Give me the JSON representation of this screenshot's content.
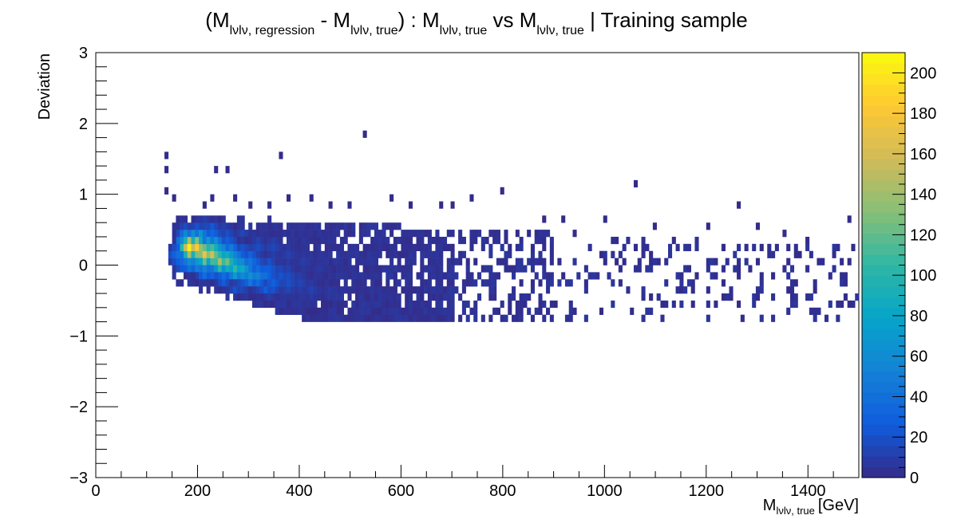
{
  "chart_data": {
    "type": "heatmap",
    "title_parts": {
      "t1": "(M",
      "s1": "lνlν, regression",
      "t2": " - M",
      "s2": "lνlν, true",
      "t3": ") : M",
      "s3": "lνlν, true",
      "t4": " vs M",
      "s4": "lνlν, true",
      "t5": " | Training sample"
    },
    "xlabel_main": "M",
    "xlabel_sub": "lνlν, true",
    "xlabel_unit": "[GeV]",
    "ylabel": "Deviation",
    "xlim": [
      0,
      1500
    ],
    "ylim": [
      -3,
      3
    ],
    "x_ticks": [
      "0",
      "200",
      "400",
      "600",
      "800",
      "1000",
      "1200",
      "1400"
    ],
    "x_tick_values": [
      0,
      200,
      400,
      600,
      800,
      1000,
      1200,
      1400
    ],
    "y_ticks": [
      "−3",
      "−2",
      "−1",
      "0",
      "1",
      "2",
      "3"
    ],
    "y_tick_values": [
      -3,
      -2,
      -1,
      0,
      1,
      2,
      3
    ],
    "z_ticks": [
      "0",
      "20",
      "40",
      "60",
      "80",
      "100",
      "120",
      "140",
      "160",
      "180",
      "200"
    ],
    "z_tick_values": [
      0,
      20,
      40,
      60,
      80,
      100,
      120,
      140,
      160,
      180,
      200
    ],
    "zlim": [
      0,
      210
    ],
    "bin_width_x": 7.5,
    "bin_height_y": 0.1,
    "colormap": [
      "#352a87",
      "#0f5cdd",
      "#1481d6",
      "#06a4ca",
      "#2eb7a4",
      "#87bf77",
      "#d1bb59",
      "#fec832",
      "#f9fb0e"
    ],
    "cells": [
      [
        180,
        0.25,
        205
      ],
      [
        195,
        0.2,
        185
      ],
      [
        210,
        0.15,
        175
      ],
      [
        225,
        0.1,
        160
      ],
      [
        240,
        0.05,
        145
      ],
      [
        255,
        0.0,
        125
      ],
      [
        270,
        -0.05,
        105
      ],
      [
        285,
        -0.08,
        85
      ],
      [
        300,
        -0.12,
        65
      ],
      [
        315,
        -0.15,
        55
      ],
      [
        330,
        -0.2,
        40
      ],
      [
        350,
        -0.25,
        30
      ],
      [
        380,
        -0.3,
        20
      ],
      [
        420,
        -0.35,
        12
      ],
      [
        460,
        -0.4,
        8
      ],
      [
        175,
        0.35,
        80
      ],
      [
        190,
        0.35,
        90
      ],
      [
        205,
        0.3,
        95
      ],
      [
        220,
        0.25,
        100
      ],
      [
        235,
        0.2,
        90
      ],
      [
        250,
        0.15,
        80
      ],
      [
        265,
        0.1,
        70
      ],
      [
        280,
        0.05,
        60
      ],
      [
        300,
        0.0,
        45
      ],
      [
        320,
        -0.05,
        35
      ],
      [
        340,
        -0.1,
        28
      ],
      [
        360,
        -0.15,
        22
      ],
      [
        380,
        -0.2,
        18
      ],
      [
        400,
        -0.25,
        14
      ],
      [
        185,
        0.05,
        60
      ],
      [
        200,
        0.0,
        70
      ],
      [
        215,
        -0.05,
        55
      ],
      [
        230,
        -0.1,
        45
      ],
      [
        250,
        -0.15,
        38
      ],
      [
        270,
        -0.2,
        30
      ],
      [
        290,
        -0.25,
        22
      ],
      [
        315,
        -0.3,
        18
      ],
      [
        340,
        -0.35,
        14
      ],
      [
        370,
        -0.4,
        10
      ],
      [
        200,
        0.45,
        30
      ],
      [
        230,
        0.4,
        35
      ],
      [
        260,
        0.35,
        28
      ],
      [
        290,
        0.3,
        22
      ],
      [
        320,
        0.25,
        18
      ],
      [
        350,
        0.2,
        15
      ],
      [
        380,
        0.1,
        12
      ],
      [
        410,
        0.0,
        10
      ],
      [
        440,
        -0.1,
        8
      ],
      [
        480,
        -0.2,
        6
      ],
      [
        160,
        0.15,
        40
      ],
      [
        170,
        0.05,
        35
      ],
      [
        175,
        0.45,
        25
      ],
      [
        215,
        0.55,
        15
      ],
      [
        250,
        0.5,
        12
      ]
    ],
    "outliers": [
      [
        135,
        1.5
      ],
      [
        135,
        1.3
      ],
      [
        140,
        1.0
      ],
      [
        235,
        1.3
      ],
      [
        262,
        1.3
      ],
      [
        360,
        1.5
      ],
      [
        525,
        1.85
      ],
      [
        150,
        0.9
      ],
      [
        210,
        0.8
      ],
      [
        230,
        0.9
      ],
      [
        270,
        0.9
      ],
      [
        300,
        0.8
      ],
      [
        340,
        0.8
      ],
      [
        380,
        0.9
      ],
      [
        420,
        0.9
      ],
      [
        460,
        0.8
      ],
      [
        500,
        0.8
      ],
      [
        580,
        0.9
      ],
      [
        620,
        0.8
      ],
      [
        680,
        0.8
      ],
      [
        700,
        0.8
      ],
      [
        740,
        0.9
      ],
      [
        800,
        1.0
      ],
      [
        1060,
        1.1
      ],
      [
        1265,
        0.8
      ],
      [
        1480,
        0.7
      ],
      [
        880,
        0.7
      ],
      [
        920,
        0.65
      ],
      [
        1000,
        0.65
      ],
      [
        1100,
        0.6
      ],
      [
        1200,
        0.6
      ],
      [
        1300,
        0.55
      ],
      [
        1350,
        0.45
      ],
      [
        1400,
        0.35
      ],
      [
        1450,
        0.25
      ],
      [
        1490,
        0.3
      ],
      [
        1480,
        -0.6
      ],
      [
        1470,
        -0.5
      ],
      [
        1410,
        -0.4
      ],
      [
        1360,
        -0.35
      ],
      [
        1300,
        -0.4
      ],
      [
        1230,
        -0.5
      ],
      [
        1170,
        -0.55
      ],
      [
        1110,
        -0.6
      ],
      [
        1050,
        -0.7
      ],
      [
        990,
        -0.7
      ],
      [
        940,
        -0.7
      ],
      [
        900,
        -0.6
      ],
      [
        860,
        -0.75
      ],
      [
        820,
        -0.75
      ],
      [
        760,
        -0.75
      ],
      [
        720,
        -0.7
      ],
      [
        680,
        -0.75
      ],
      [
        620,
        -0.75
      ],
      [
        560,
        -0.7
      ],
      [
        500,
        -0.7
      ],
      [
        940,
        0.4
      ],
      [
        1020,
        0.35
      ],
      [
        1140,
        0.3
      ],
      [
        1230,
        0.25
      ],
      [
        1310,
        0.2
      ],
      [
        1380,
        0.1
      ],
      [
        1420,
        0.0
      ],
      [
        1260,
        -0.1
      ],
      [
        1180,
        -0.2
      ],
      [
        1090,
        0.1
      ],
      [
        1000,
        0.0
      ],
      [
        960,
        -0.3
      ],
      [
        1210,
        0.0
      ],
      [
        1330,
        -0.2
      ]
    ]
  }
}
